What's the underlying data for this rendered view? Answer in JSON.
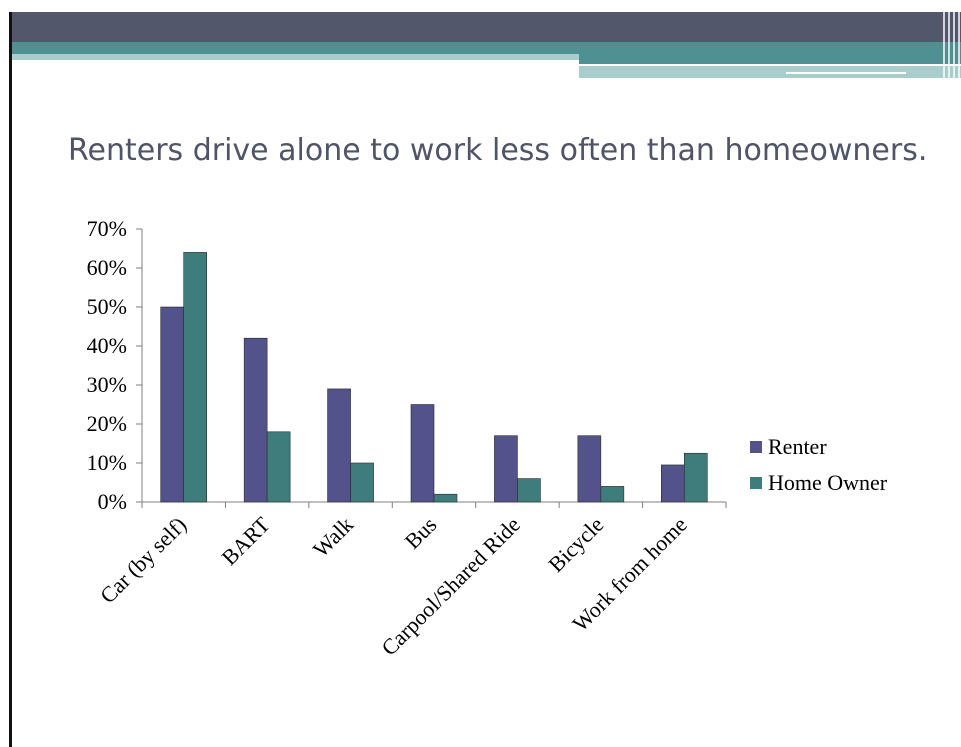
{
  "slide": {
    "title": "Renters drive alone to work less often than homeowners."
  },
  "chart_data": {
    "type": "bar",
    "categories": [
      "Car (by self)",
      "BART",
      "Walk",
      "Bus",
      "Carpool/Shared Ride",
      "Bicycle",
      "Work from home"
    ],
    "series": [
      {
        "name": "Renter",
        "color": "#53528a",
        "values": [
          50,
          42,
          29,
          25,
          17,
          17,
          9.5
        ]
      },
      {
        "name": "Home Owner",
        "color": "#3e7d7b",
        "values": [
          64,
          18,
          10,
          2,
          6,
          4,
          12.5
        ]
      }
    ],
    "ylim": [
      0,
      70
    ],
    "yticks": [
      "0%",
      "10%",
      "20%",
      "30%",
      "40%",
      "50%",
      "60%",
      "70%"
    ],
    "grid": false,
    "legend_position": "right"
  }
}
